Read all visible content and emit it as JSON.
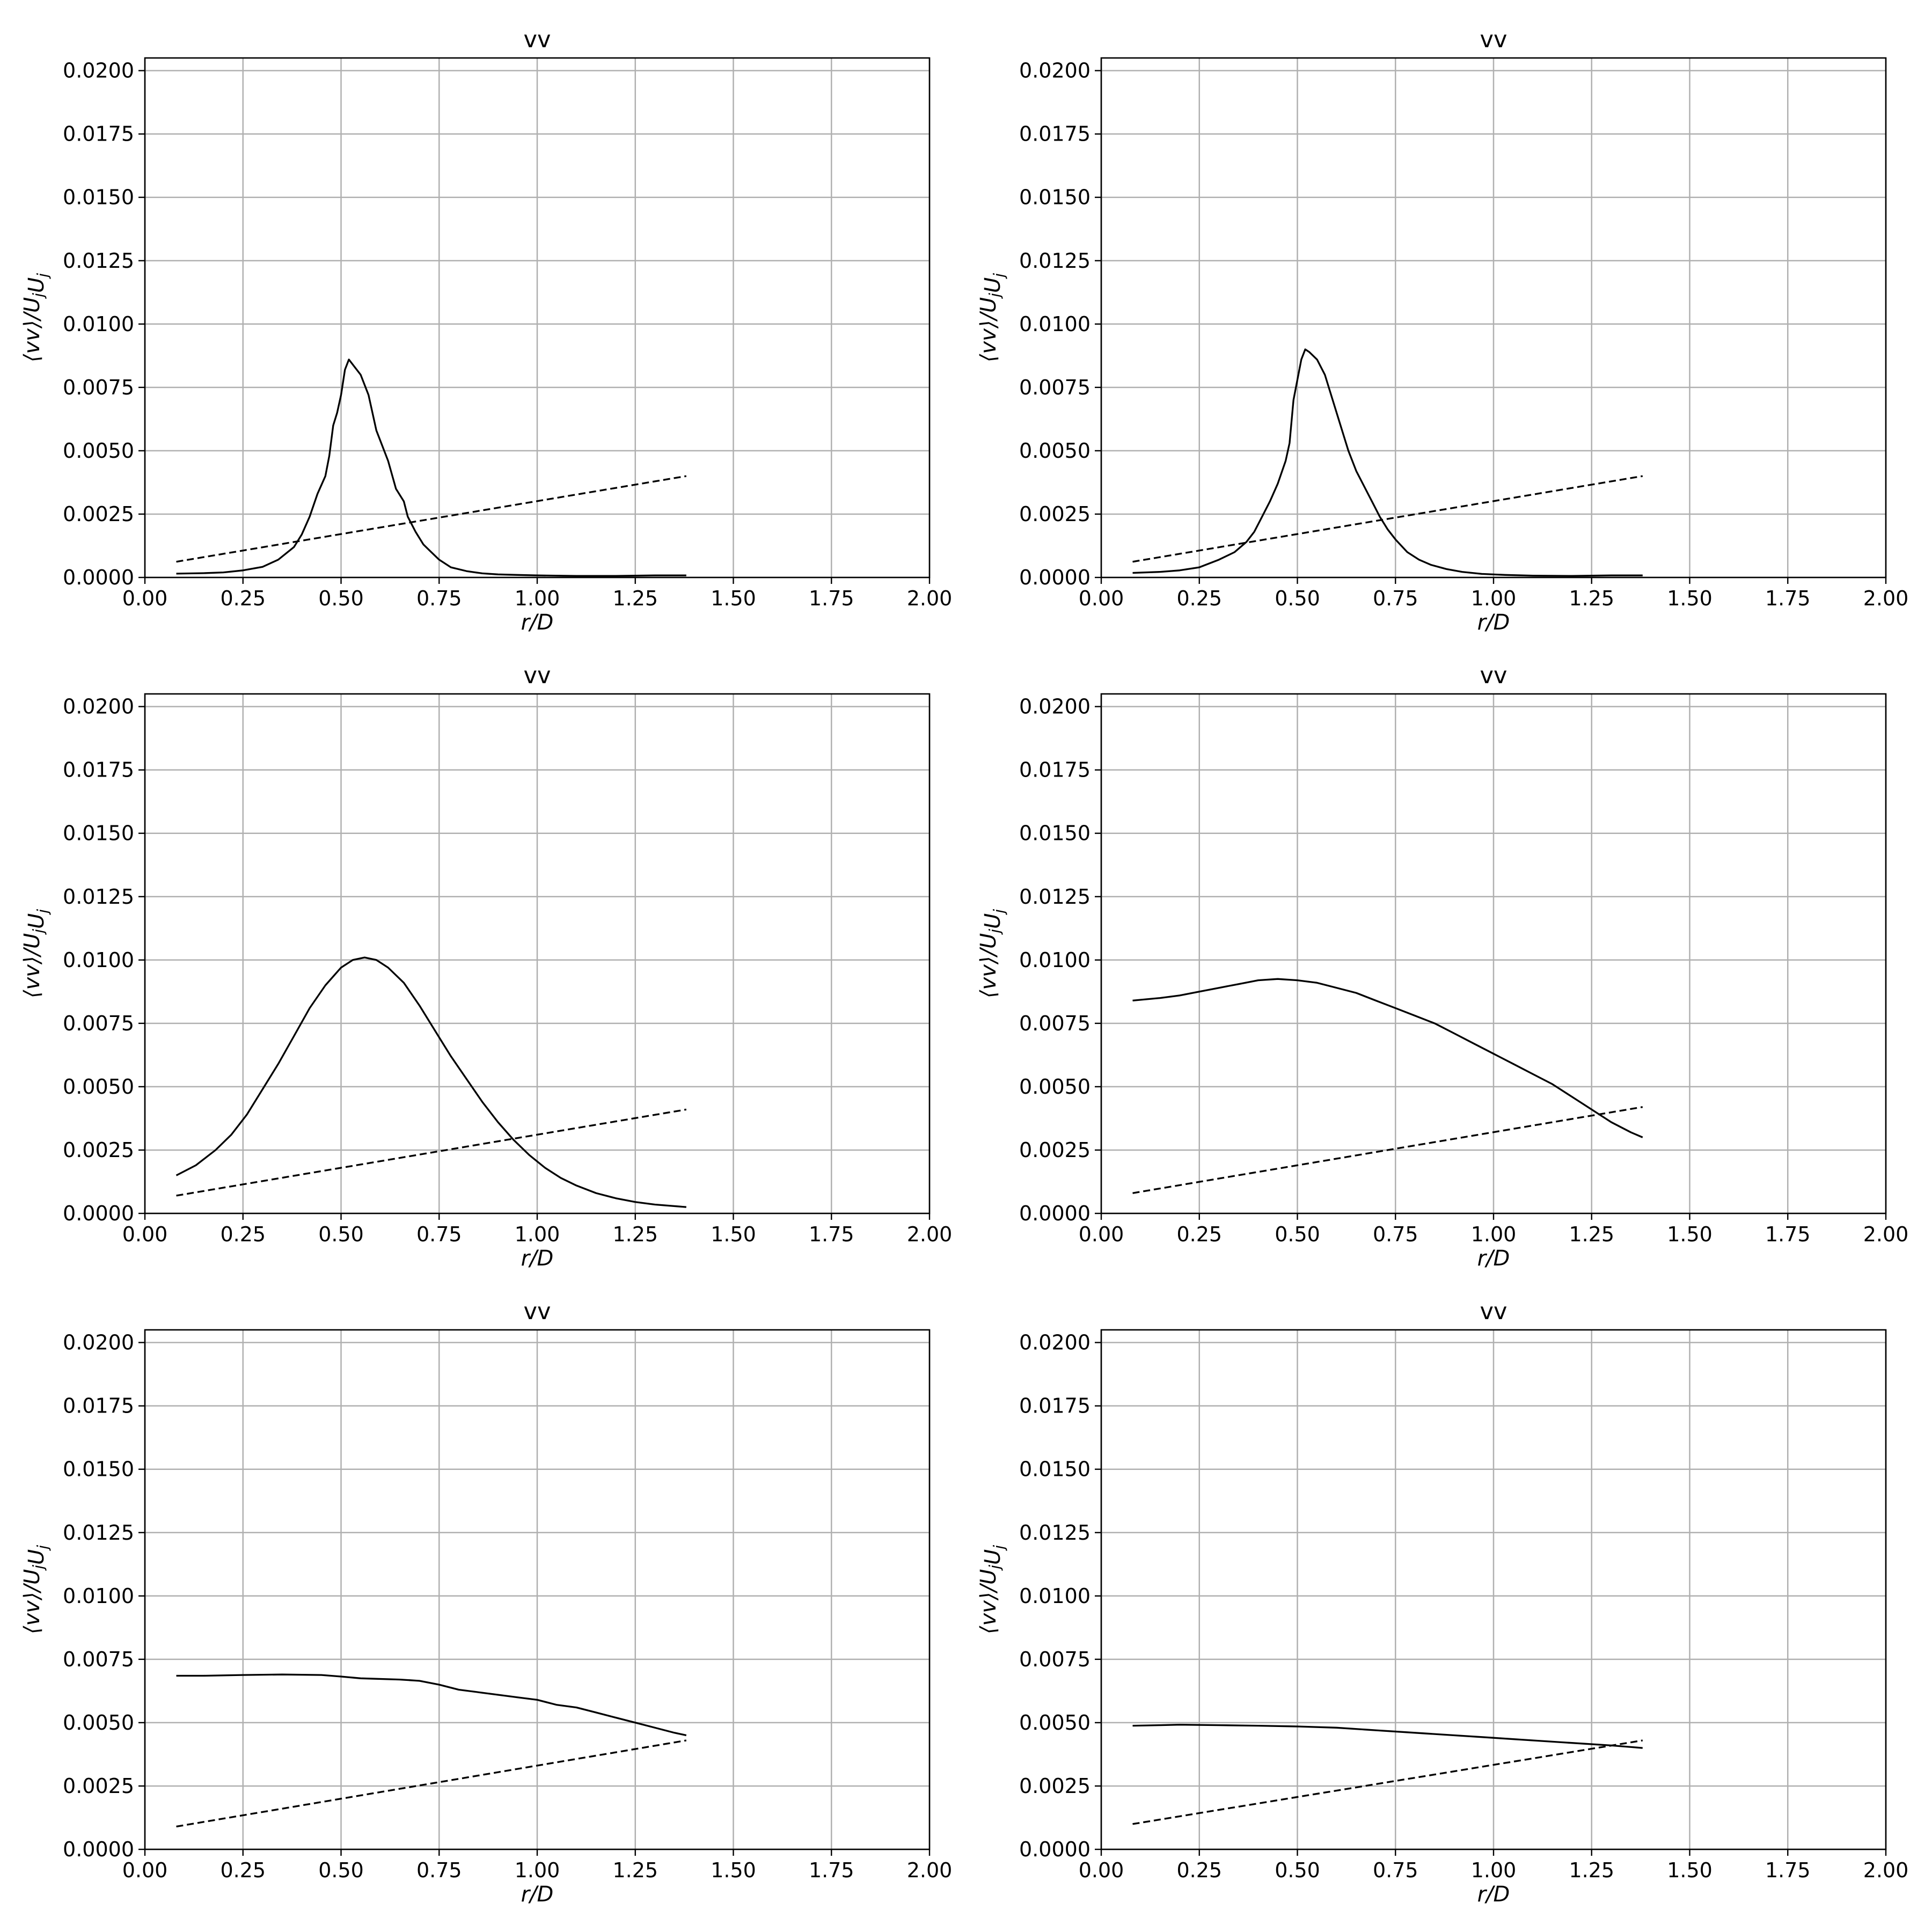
{
  "chart_data": [
    {
      "type": "line",
      "title": "vv",
      "xlabel": "r/D",
      "ylabel": "⟨vv⟩/U_jU_j",
      "xlim": [
        0,
        2
      ],
      "ylim": [
        0,
        0.0205
      ],
      "xticks": [
        "0.00",
        "0.25",
        "0.50",
        "0.75",
        "1.00",
        "1.25",
        "1.50",
        "1.75",
        "2.00"
      ],
      "yticks": [
        "0.0000",
        "0.0025",
        "0.0050",
        "0.0075",
        "0.0100",
        "0.0125",
        "0.0150",
        "0.0175",
        "0.0200"
      ],
      "grid": true,
      "series": [
        {
          "style": "solid",
          "x": [
            0.08,
            0.15,
            0.2,
            0.25,
            0.3,
            0.34,
            0.38,
            0.4,
            0.42,
            0.44,
            0.46,
            0.47,
            0.48,
            0.49,
            0.5,
            0.51,
            0.52,
            0.53,
            0.55,
            0.57,
            0.59,
            0.6,
            0.62,
            0.64,
            0.66,
            0.67,
            0.69,
            0.71,
            0.73,
            0.75,
            0.78,
            0.82,
            0.86,
            0.9,
            0.95,
            1.0,
            1.1,
            1.2,
            1.3,
            1.38
          ],
          "y": [
            0.00015,
            0.00017,
            0.0002,
            0.00028,
            0.00042,
            0.0007,
            0.0012,
            0.0017,
            0.0024,
            0.0033,
            0.004,
            0.0048,
            0.006,
            0.0065,
            0.0072,
            0.0082,
            0.0086,
            0.0084,
            0.008,
            0.0072,
            0.0058,
            0.0054,
            0.0046,
            0.0035,
            0.003,
            0.0024,
            0.0018,
            0.0013,
            0.001,
            0.0007,
            0.0004,
            0.00025,
            0.00016,
            0.00012,
            0.0001,
            8e-05,
            6e-05,
            6e-05,
            8e-05,
            8e-05
          ]
        },
        {
          "style": "dashed",
          "x": [
            0.08,
            1.38
          ],
          "y": [
            0.00062,
            0.004
          ]
        }
      ]
    },
    {
      "type": "line",
      "title": "vv",
      "xlabel": "r/D",
      "ylabel": "⟨vv⟩/U_jU_j",
      "xlim": [
        0,
        2
      ],
      "ylim": [
        0,
        0.0205
      ],
      "xticks": [
        "0.00",
        "0.25",
        "0.50",
        "0.75",
        "1.00",
        "1.25",
        "1.50",
        "1.75",
        "2.00"
      ],
      "yticks": [
        "0.0000",
        "0.0025",
        "0.0050",
        "0.0075",
        "0.0100",
        "0.0125",
        "0.0150",
        "0.0175",
        "0.0200"
      ],
      "grid": true,
      "series": [
        {
          "style": "solid",
          "x": [
            0.08,
            0.15,
            0.2,
            0.25,
            0.3,
            0.34,
            0.37,
            0.39,
            0.41,
            0.43,
            0.45,
            0.47,
            0.48,
            0.49,
            0.5,
            0.51,
            0.52,
            0.53,
            0.55,
            0.57,
            0.59,
            0.61,
            0.63,
            0.65,
            0.67,
            0.69,
            0.71,
            0.73,
            0.75,
            0.78,
            0.81,
            0.84,
            0.88,
            0.92,
            0.97,
            1.03,
            1.1,
            1.2,
            1.3,
            1.38
          ],
          "y": [
            0.00018,
            0.00022,
            0.00028,
            0.0004,
            0.0007,
            0.001,
            0.0014,
            0.0018,
            0.0024,
            0.003,
            0.0037,
            0.0046,
            0.0053,
            0.007,
            0.0078,
            0.0086,
            0.009,
            0.0089,
            0.0086,
            0.008,
            0.007,
            0.006,
            0.005,
            0.0042,
            0.0036,
            0.003,
            0.0024,
            0.0019,
            0.0015,
            0.001,
            0.0007,
            0.0005,
            0.00033,
            0.00022,
            0.00014,
            0.0001,
            7e-05,
            6e-05,
            8e-05,
            8e-05
          ]
        },
        {
          "style": "dashed",
          "x": [
            0.08,
            1.38
          ],
          "y": [
            0.00062,
            0.004
          ]
        }
      ]
    },
    {
      "type": "line",
      "title": "vv",
      "xlabel": "r/D",
      "ylabel": "⟨vv⟩/U_jU_j",
      "xlim": [
        0,
        2
      ],
      "ylim": [
        0,
        0.0205
      ],
      "xticks": [
        "0.00",
        "0.25",
        "0.50",
        "0.75",
        "1.00",
        "1.25",
        "1.50",
        "1.75",
        "2.00"
      ],
      "yticks": [
        "0.0000",
        "0.0025",
        "0.0050",
        "0.0075",
        "0.0100",
        "0.0125",
        "0.0150",
        "0.0175",
        "0.0200"
      ],
      "grid": true,
      "series": [
        {
          "style": "solid",
          "x": [
            0.08,
            0.13,
            0.18,
            0.22,
            0.26,
            0.3,
            0.34,
            0.38,
            0.42,
            0.46,
            0.5,
            0.53,
            0.56,
            0.59,
            0.62,
            0.66,
            0.7,
            0.74,
            0.78,
            0.82,
            0.86,
            0.9,
            0.94,
            0.98,
            1.02,
            1.06,
            1.1,
            1.15,
            1.2,
            1.25,
            1.3,
            1.38
          ],
          "y": [
            0.0015,
            0.0019,
            0.0025,
            0.0031,
            0.0039,
            0.0049,
            0.0059,
            0.007,
            0.0081,
            0.009,
            0.0097,
            0.01,
            0.0101,
            0.01,
            0.0097,
            0.0091,
            0.0082,
            0.0072,
            0.0062,
            0.0053,
            0.0044,
            0.0036,
            0.0029,
            0.0023,
            0.0018,
            0.0014,
            0.0011,
            0.0008,
            0.0006,
            0.00045,
            0.00035,
            0.00025
          ]
        },
        {
          "style": "dashed",
          "x": [
            0.08,
            1.38
          ],
          "y": [
            0.0007,
            0.0041
          ]
        }
      ]
    },
    {
      "type": "line",
      "title": "vv",
      "xlabel": "r/D",
      "ylabel": "⟨vv⟩/U_jU_j",
      "xlim": [
        0,
        2
      ],
      "ylim": [
        0,
        0.0205
      ],
      "xticks": [
        "0.00",
        "0.25",
        "0.50",
        "0.75",
        "1.00",
        "1.25",
        "1.50",
        "1.75",
        "2.00"
      ],
      "yticks": [
        "0.0000",
        "0.0025",
        "0.0050",
        "0.0075",
        "0.0100",
        "0.0125",
        "0.0150",
        "0.0175",
        "0.0200"
      ],
      "grid": true,
      "series": [
        {
          "style": "solid",
          "x": [
            0.08,
            0.15,
            0.2,
            0.25,
            0.3,
            0.35,
            0.4,
            0.45,
            0.5,
            0.55,
            0.6,
            0.65,
            0.7,
            0.75,
            0.8,
            0.85,
            0.9,
            0.95,
            1.0,
            1.05,
            1.1,
            1.15,
            1.2,
            1.25,
            1.3,
            1.35,
            1.38
          ],
          "y": [
            0.0084,
            0.0085,
            0.0086,
            0.00875,
            0.0089,
            0.00905,
            0.0092,
            0.00925,
            0.0092,
            0.0091,
            0.0089,
            0.0087,
            0.0084,
            0.0081,
            0.0078,
            0.0075,
            0.0071,
            0.0067,
            0.0063,
            0.0059,
            0.0055,
            0.0051,
            0.0046,
            0.0041,
            0.0036,
            0.0032,
            0.003
          ]
        },
        {
          "style": "dashed",
          "x": [
            0.08,
            1.38
          ],
          "y": [
            0.0008,
            0.0042
          ]
        }
      ]
    },
    {
      "type": "line",
      "title": "vv",
      "xlabel": "r/D",
      "ylabel": "⟨vv⟩/U_jU_j",
      "xlim": [
        0,
        2
      ],
      "ylim": [
        0,
        0.0205
      ],
      "xticks": [
        "0.00",
        "0.25",
        "0.50",
        "0.75",
        "1.00",
        "1.25",
        "1.50",
        "1.75",
        "2.00"
      ],
      "yticks": [
        "0.0000",
        "0.0025",
        "0.0050",
        "0.0075",
        "0.0100",
        "0.0125",
        "0.0150",
        "0.0175",
        "0.0200"
      ],
      "grid": true,
      "series": [
        {
          "style": "solid",
          "x": [
            0.08,
            0.15,
            0.25,
            0.35,
            0.45,
            0.5,
            0.55,
            0.65,
            0.7,
            0.75,
            0.8,
            0.85,
            0.9,
            0.95,
            1.0,
            1.05,
            1.1,
            1.15,
            1.2,
            1.25,
            1.3,
            1.35,
            1.38
          ],
          "y": [
            0.00685,
            0.00685,
            0.00688,
            0.0069,
            0.00688,
            0.00682,
            0.00675,
            0.0067,
            0.00665,
            0.0065,
            0.0063,
            0.0062,
            0.0061,
            0.006,
            0.0059,
            0.0057,
            0.0056,
            0.0054,
            0.0052,
            0.005,
            0.0048,
            0.0046,
            0.0045
          ]
        },
        {
          "style": "dashed",
          "x": [
            0.08,
            1.38
          ],
          "y": [
            0.0009,
            0.0043
          ]
        }
      ]
    },
    {
      "type": "line",
      "title": "vv",
      "xlabel": "r/D",
      "ylabel": "⟨vv⟩/U_jU_j",
      "xlim": [
        0,
        2
      ],
      "ylim": [
        0,
        0.0205
      ],
      "xticks": [
        "0.00",
        "0.25",
        "0.50",
        "0.75",
        "1.00",
        "1.25",
        "1.50",
        "1.75",
        "2.00"
      ],
      "yticks": [
        "0.0000",
        "0.0025",
        "0.0050",
        "0.0075",
        "0.0100",
        "0.0125",
        "0.0150",
        "0.0175",
        "0.0200"
      ],
      "grid": true,
      "series": [
        {
          "style": "solid",
          "x": [
            0.08,
            0.15,
            0.2,
            0.3,
            0.4,
            0.5,
            0.6,
            0.7,
            0.8,
            0.9,
            1.0,
            1.1,
            1.2,
            1.3,
            1.38
          ],
          "y": [
            0.00488,
            0.0049,
            0.00492,
            0.0049,
            0.00488,
            0.00485,
            0.0048,
            0.0047,
            0.0046,
            0.0045,
            0.0044,
            0.0043,
            0.0042,
            0.0041,
            0.004
          ]
        },
        {
          "style": "dashed",
          "x": [
            0.08,
            1.38
          ],
          "y": [
            0.001,
            0.0043
          ]
        }
      ]
    }
  ]
}
